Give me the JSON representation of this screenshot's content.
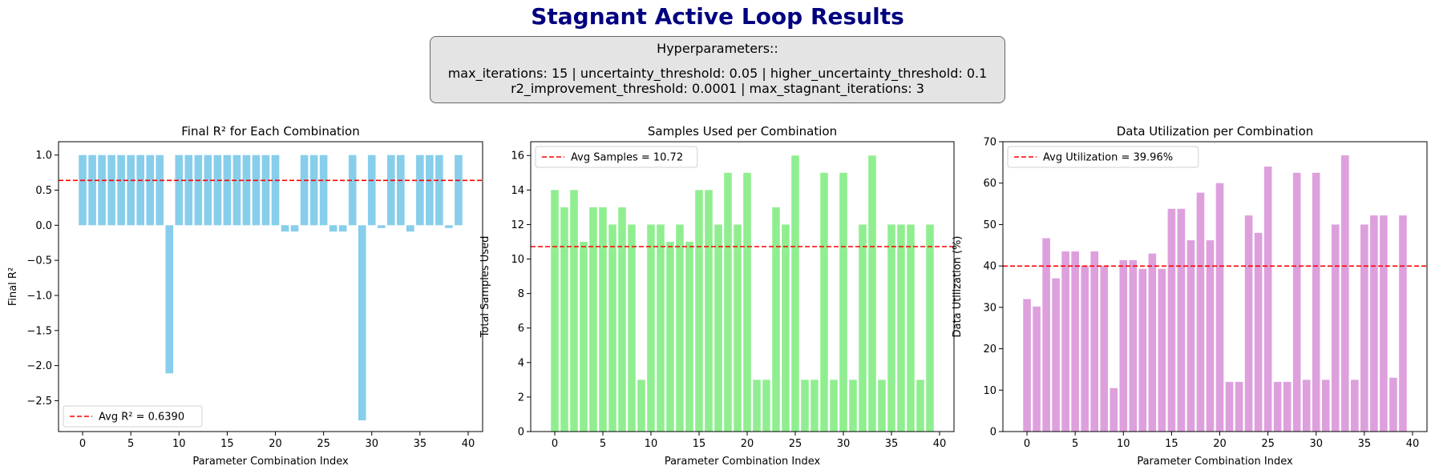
{
  "title": "Stagnant Active Loop Results",
  "hyperparameters": {
    "heading": "Hyperparameters::",
    "line1": "max_iterations: 15 | uncertainty_threshold: 0.05 | higher_uncertainty_threshold: 0.1",
    "line2": "r2_improvement_threshold: 0.0001 | max_stagnant_iterations: 3"
  },
  "chart_data": [
    {
      "type": "bar",
      "title": "Final R² for Each Combination",
      "xlabel": "Parameter Combination Index",
      "ylabel": "Final R²",
      "x": [
        0,
        1,
        2,
        3,
        4,
        5,
        6,
        7,
        8,
        9,
        10,
        11,
        12,
        13,
        14,
        15,
        16,
        17,
        18,
        19,
        20,
        21,
        22,
        23,
        24,
        25,
        26,
        27,
        28,
        29,
        30,
        31,
        32,
        33,
        34,
        35,
        36,
        37,
        38,
        39
      ],
      "values": [
        1.0,
        1.0,
        1.0,
        1.0,
        1.0,
        1.0,
        1.0,
        1.0,
        1.0,
        -2.11,
        1.0,
        1.0,
        1.0,
        1.0,
        1.0,
        1.0,
        1.0,
        1.0,
        1.0,
        1.0,
        1.0,
        -0.09,
        -0.09,
        1.0,
        1.0,
        1.0,
        -0.09,
        -0.09,
        1.0,
        -2.78,
        1.0,
        -0.04,
        1.0,
        1.0,
        -0.09,
        1.0,
        1.0,
        1.0,
        -0.04,
        1.0
      ],
      "color": "#87ceeb",
      "xlim": [
        -2.5,
        41.5
      ],
      "ylim": [
        -2.94,
        1.19
      ],
      "xticks": [
        0,
        5,
        10,
        15,
        20,
        25,
        30,
        35,
        40
      ],
      "yticks": [
        1.0,
        0.5,
        0.0,
        -0.5,
        -1.0,
        -1.5,
        -2.0,
        -2.5
      ],
      "ytick_labels": [
        "1.0",
        "0.5",
        "0.0",
        "−0.5",
        "−1.0",
        "−1.5",
        "−2.0",
        "−2.5"
      ],
      "average": 0.639,
      "legend_label": "Avg R² = 0.6390",
      "legend_position": "lower-left"
    },
    {
      "type": "bar",
      "title": "Samples Used per Combination",
      "xlabel": "Parameter Combination Index",
      "ylabel": "Total Samples Used",
      "x": [
        0,
        1,
        2,
        3,
        4,
        5,
        6,
        7,
        8,
        9,
        10,
        11,
        12,
        13,
        14,
        15,
        16,
        17,
        18,
        19,
        20,
        21,
        22,
        23,
        24,
        25,
        26,
        27,
        28,
        29,
        30,
        31,
        32,
        33,
        34,
        35,
        36,
        37,
        38,
        39
      ],
      "values": [
        14,
        13,
        14,
        11,
        13,
        13,
        12,
        13,
        12,
        3,
        12,
        12,
        11,
        12,
        11,
        14,
        14,
        12,
        15,
        12,
        15,
        3,
        3,
        13,
        12,
        16,
        3,
        3,
        15,
        3,
        15,
        3,
        12,
        16,
        3,
        12,
        12,
        12,
        3,
        12
      ],
      "color": "#90ee90",
      "xlim": [
        -2.5,
        41.5
      ],
      "ylim": [
        0,
        16.8
      ],
      "xticks": [
        0,
        5,
        10,
        15,
        20,
        25,
        30,
        35,
        40
      ],
      "yticks": [
        0,
        2,
        4,
        6,
        8,
        10,
        12,
        14,
        16
      ],
      "average": 10.72,
      "legend_label": "Avg Samples = 10.72",
      "legend_position": "upper-left"
    },
    {
      "type": "bar",
      "title": "Data Utilization per Combination",
      "xlabel": "Parameter Combination Index",
      "ylabel": "Data Utilization (%)",
      "x": [
        0,
        1,
        2,
        3,
        4,
        5,
        6,
        7,
        8,
        9,
        10,
        11,
        12,
        13,
        14,
        15,
        16,
        17,
        18,
        19,
        20,
        21,
        22,
        23,
        24,
        25,
        26,
        27,
        28,
        29,
        30,
        31,
        32,
        33,
        34,
        35,
        36,
        37,
        38,
        39
      ],
      "values": [
        32,
        30.2,
        46.7,
        37,
        43.5,
        43.5,
        40,
        43.5,
        40,
        10.5,
        41.4,
        41.4,
        39.3,
        43,
        39.3,
        53.8,
        53.8,
        46.2,
        57.7,
        46.2,
        60,
        12,
        12,
        52.2,
        48,
        64,
        12,
        12,
        62.5,
        12.5,
        62.5,
        12.5,
        50,
        66.7,
        12.5,
        50,
        52.2,
        52.2,
        13,
        52.2
      ],
      "color": "#dda0dd",
      "xlim": [
        -2.5,
        41.5
      ],
      "ylim": [
        0,
        70
      ],
      "xticks": [
        0,
        5,
        10,
        15,
        20,
        25,
        30,
        35,
        40
      ],
      "yticks": [
        0,
        10,
        20,
        30,
        40,
        50,
        60,
        70
      ],
      "average": 39.96,
      "legend_label": "Avg Utilization = 39.96%",
      "legend_position": "upper-left"
    }
  ]
}
